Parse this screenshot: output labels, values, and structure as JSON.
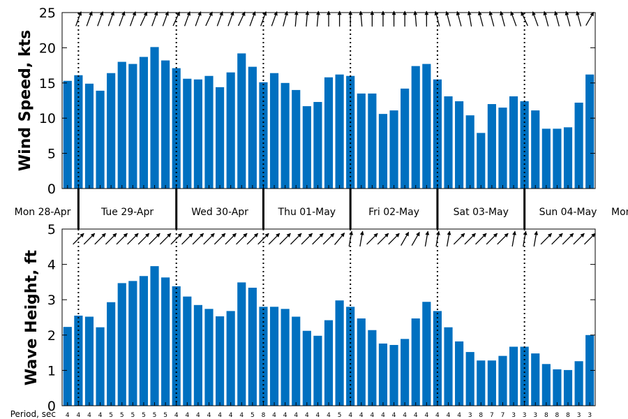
{
  "chart_data": [
    {
      "type": "bar",
      "ylabel": "Wind Speed, kts",
      "ylim": [
        0,
        25
      ],
      "yticks": [
        "0",
        "5",
        "10",
        "15",
        "20",
        "25"
      ],
      "color": "#0070c0",
      "values": [
        15.3,
        16.1,
        14.9,
        13.9,
        16.4,
        18.0,
        17.7,
        18.7,
        20.1,
        18.2,
        17.1,
        15.6,
        15.5,
        16.0,
        14.4,
        16.5,
        19.2,
        17.3,
        15.1,
        16.4,
        15.0,
        14.0,
        11.7,
        12.3,
        15.8,
        16.2,
        16.0,
        13.5,
        13.5,
        10.6,
        11.1,
        14.2,
        17.4,
        17.7,
        15.5,
        13.1,
        12.4,
        10.4,
        7.9,
        12.0,
        11.5,
        13.1,
        12.4,
        11.1,
        8.5,
        8.5,
        8.7,
        12.2,
        16.2
      ],
      "direction_arrows": true
    },
    {
      "type": "bar",
      "ylabel": "Wave Height, ft",
      "ylim": [
        0,
        5
      ],
      "yticks": [
        "0",
        "1",
        "2",
        "3",
        "4",
        "5"
      ],
      "color": "#0070c0",
      "values": [
        2.23,
        2.55,
        2.52,
        2.22,
        2.93,
        3.47,
        3.53,
        3.67,
        3.95,
        3.63,
        3.38,
        3.09,
        2.85,
        2.74,
        2.53,
        2.68,
        3.49,
        3.34,
        2.8,
        2.8,
        2.74,
        2.52,
        2.12,
        1.98,
        2.42,
        2.98,
        2.8,
        2.47,
        2.14,
        1.76,
        1.72,
        1.89,
        2.47,
        2.94,
        2.68,
        2.22,
        1.82,
        1.52,
        1.28,
        1.28,
        1.41,
        1.67,
        1.67,
        1.48,
        1.18,
        1.03,
        1.01,
        1.26,
        2.0
      ],
      "direction_arrows": true
    }
  ],
  "days": [
    "Mon 28-Apr",
    "Tue 29-Apr",
    "Wed 30-Apr",
    "Thu 01-May",
    "Fri 02-May",
    "Sat 03-May",
    "Sun 04-May",
    "Mon"
  ],
  "period_label": "Period, sec",
  "periods": [
    "4",
    "4",
    "4",
    "4",
    "5",
    "5",
    "5",
    "5",
    "5",
    "5",
    "4",
    "4",
    "4",
    "4",
    "4",
    "4",
    "4",
    "5",
    "8",
    "4",
    "4",
    "4",
    "4",
    "4",
    "4",
    "5",
    "4",
    "4",
    "4",
    "4",
    "4",
    "4",
    "4",
    "4",
    "4",
    "4",
    "4",
    "3",
    "8",
    "7",
    "7",
    "3",
    "3",
    "3",
    "8",
    "8",
    "8",
    "3",
    "3"
  ],
  "wind_dirs": [
    200,
    200,
    200,
    200,
    200,
    200,
    200,
    205,
    200,
    200,
    205,
    200,
    200,
    205,
    200,
    200,
    205,
    200,
    200,
    200,
    195,
    185,
    185,
    185,
    180,
    180,
    180,
    175,
    180,
    180,
    180,
    180,
    175,
    180,
    165,
    165,
    165,
    170,
    165,
    165,
    165,
    160,
    155,
    160,
    165,
    165,
    165,
    165,
    210
  ],
  "wave_dirs": [
    225,
    225,
    225,
    225,
    225,
    225,
    225,
    225,
    225,
    225,
    225,
    225,
    225,
    225,
    225,
    225,
    225,
    225,
    225,
    225,
    225,
    225,
    225,
    225,
    225,
    220,
    190,
    190,
    225,
    225,
    225,
    210,
    210,
    190,
    190,
    190,
    225,
    225,
    225,
    225,
    225,
    190,
    190,
    190,
    225,
    225,
    225,
    225,
    225
  ]
}
